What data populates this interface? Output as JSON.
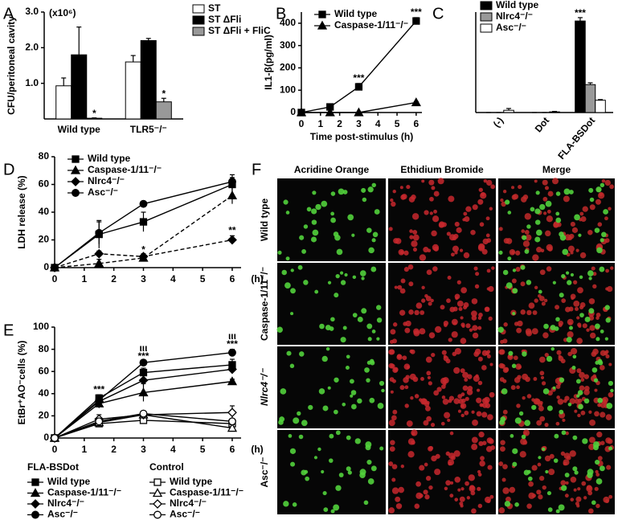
{
  "chart_data": [
    {
      "type": "bar",
      "panel": "A",
      "y_label": "CFU/peritoneal cavity",
      "unit_note": "(x10⁶)",
      "categories": [
        "Wild type",
        "TLR5⁻/⁻"
      ],
      "series": [
        {
          "name": "ST",
          "color": "#ffffff",
          "values": [
            0.93,
            1.6
          ],
          "errors": [
            0.22,
            0.18
          ]
        },
        {
          "name": "ST ΔFli",
          "color": "#000000",
          "values": [
            1.8,
            2.2
          ],
          "errors": [
            0.78,
            0.06
          ]
        },
        {
          "name": "ST ΔFli + FliC",
          "color": "#999999",
          "values": [
            0.02,
            0.48
          ],
          "errors": [
            0.01,
            0.1
          ],
          "significance": [
            "*",
            "*"
          ]
        }
      ],
      "ylim": [
        0,
        3
      ],
      "yticks": [
        {
          "value": 1,
          "label": "1.0"
        },
        {
          "value": 2,
          "label": "2.0"
        },
        {
          "value": 3,
          "label": "3.0"
        }
      ]
    },
    {
      "type": "line",
      "panel": "B",
      "y_label": "IL1-β(pg/ml)",
      "x_label": "Time post-stimulus (h)",
      "x": [
        0,
        1.5,
        3,
        6
      ],
      "series": [
        {
          "name": "Wild type",
          "color": "#000000",
          "marker": "square",
          "filled": true,
          "dashed": false,
          "values": [
            0,
            25,
            115,
            410
          ],
          "errors": [
            3,
            8,
            15,
            15
          ],
          "significance": [
            null,
            null,
            "***",
            "***"
          ]
        },
        {
          "name": "Caspase-1/11⁻/⁻",
          "color": "#000000",
          "marker": "triangle",
          "filled": true,
          "dashed": false,
          "values": [
            0,
            0,
            0,
            45
          ],
          "errors": [
            0,
            0,
            0,
            4
          ]
        }
      ],
      "xlim": [
        0,
        6.3
      ],
      "xticks": [
        0,
        1,
        2,
        3,
        4,
        5,
        6
      ],
      "ylim": [
        0,
        450
      ],
      "yticks": [
        0,
        100,
        200,
        300,
        400
      ]
    },
    {
      "type": "bar",
      "panel": "C",
      "rotate_categories": true,
      "categories": [
        "(-)",
        "Dot",
        "FLA-BSDot"
      ],
      "series": [
        {
          "name": "Wild type",
          "color": "#000000",
          "values": [
            0,
            0,
            410
          ],
          "errors": [
            0,
            0,
            15
          ],
          "significance": [
            null,
            null,
            "***"
          ]
        },
        {
          "name": "Nlrc4⁻/⁻",
          "color": "#999999",
          "values": [
            0,
            0,
            125
          ],
          "errors": [
            0,
            0,
            8
          ]
        },
        {
          "name": "Asc⁻/⁻",
          "color": "#ffffff",
          "values": [
            10,
            3,
            55
          ],
          "errors": [
            8,
            2,
            3
          ]
        }
      ],
      "ylim": [
        0,
        450
      ]
    },
    {
      "type": "line",
      "panel": "D",
      "y_label": "LDH release (%)",
      "x_label": "(h)",
      "x": [
        0,
        1.5,
        3,
        6
      ],
      "series": [
        {
          "name": "Wild type",
          "color": "#000000",
          "marker": "square",
          "filled": true,
          "dashed": false,
          "values": [
            0,
            24,
            33,
            60
          ],
          "errors": [
            0,
            10,
            7,
            5
          ]
        },
        {
          "name": "Caspase-1/11⁻/⁻",
          "color": "#000000",
          "marker": "triangle",
          "filled": true,
          "dashed": true,
          "values": [
            0,
            3,
            7,
            52
          ],
          "errors": [
            0,
            3,
            2,
            6
          ],
          "significance": [
            null,
            null,
            "*",
            null
          ]
        },
        {
          "name": "Nlrc4⁻/⁻",
          "color": "#000000",
          "marker": "diamond",
          "filled": true,
          "dashed": true,
          "values": [
            0,
            10,
            8,
            20
          ],
          "errors": [
            0,
            2,
            2,
            3
          ],
          "significance": [
            null,
            null,
            null,
            "**"
          ]
        },
        {
          "name": "Asc⁻/⁻",
          "color": "#000000",
          "marker": "circle",
          "filled": true,
          "dashed": false,
          "values": [
            0,
            25,
            46,
            62
          ],
          "errors": [
            0,
            8,
            1,
            5
          ]
        }
      ],
      "xlim": [
        0,
        6.3
      ],
      "xticks": [
        0,
        1,
        2,
        3,
        4,
        5,
        6
      ],
      "ylim": [
        0,
        80
      ],
      "yticks": [
        0,
        20,
        40,
        60,
        80
      ]
    },
    {
      "type": "line",
      "panel": "E",
      "y_label": "EtBr⁺AO⁻cells (%)",
      "x_label": "(h)",
      "legend_groups": [
        "FLA-BSDot",
        "Control"
      ],
      "x": [
        0,
        1.5,
        3,
        6
      ],
      "series": [
        {
          "name": "Wild type",
          "group": 0,
          "color": "#000000",
          "marker": "square",
          "filled": true,
          "dashed": false,
          "values": [
            0,
            36,
            59,
            66
          ],
          "errors": [
            0,
            3,
            4,
            5
          ],
          "significance": [
            null,
            "***",
            null,
            null
          ]
        },
        {
          "name": "Caspase-1/11⁻/⁻",
          "group": 0,
          "color": "#000000",
          "marker": "triangle",
          "filled": true,
          "dashed": false,
          "values": [
            0,
            31,
            41,
            51
          ],
          "errors": [
            0,
            4,
            8,
            2
          ]
        },
        {
          "name": "Nlrc4⁻/⁻",
          "group": 0,
          "color": "#000000",
          "marker": "diamond",
          "filled": true,
          "dashed": false,
          "values": [
            0,
            33,
            52,
            62
          ],
          "errors": [
            0,
            3,
            5,
            4
          ]
        },
        {
          "name": "Asc⁻/⁻",
          "group": 0,
          "color": "#000000",
          "marker": "circle",
          "filled": true,
          "dashed": false,
          "values": [
            0,
            34,
            68,
            77
          ],
          "errors": [
            0,
            3,
            1,
            3
          ],
          "significance": [
            null,
            null,
            "***",
            "***"
          ],
          "significance_2": [
            null,
            null,
            "ιιι",
            "ιιι"
          ]
        },
        {
          "name": "Wild type",
          "group": 1,
          "color": "#000000",
          "marker": "square",
          "filled": false,
          "dashed": false,
          "values": [
            0,
            13,
            16,
            13
          ],
          "errors": [
            0,
            2,
            2,
            2
          ]
        },
        {
          "name": "Caspase-1/11⁻/⁻",
          "group": 1,
          "color": "#000000",
          "marker": "triangle",
          "filled": false,
          "dashed": false,
          "values": [
            0,
            14,
            21,
            9
          ],
          "errors": [
            0,
            2,
            2,
            3
          ]
        },
        {
          "name": "Nlrc4⁻/⁻",
          "group": 1,
          "color": "#000000",
          "marker": "diamond",
          "filled": false,
          "dashed": false,
          "values": [
            0,
            17,
            21,
            23
          ],
          "errors": [
            0,
            4,
            2,
            6
          ]
        },
        {
          "name": "Asc⁻/⁻",
          "group": 1,
          "color": "#000000",
          "marker": "circle",
          "filled": false,
          "dashed": false,
          "values": [
            0,
            15,
            22,
            15
          ],
          "errors": [
            0,
            2,
            2,
            2
          ]
        }
      ],
      "xlim": [
        0,
        6.3
      ],
      "xticks": [
        0,
        1,
        2,
        3,
        4,
        5,
        6
      ],
      "ylim": [
        0,
        100
      ],
      "yticks": [
        0,
        20,
        40,
        60,
        80,
        100
      ]
    }
  ],
  "panel_f": {
    "panel": "F",
    "columns": [
      "Acridine Orange",
      "Ethidium Bromide",
      "Merge"
    ],
    "rows": [
      "Wild type",
      "Caspase-1/11⁻/⁻",
      "Nlrc4⁻/⁻",
      "Asc⁻/⁻"
    ]
  }
}
